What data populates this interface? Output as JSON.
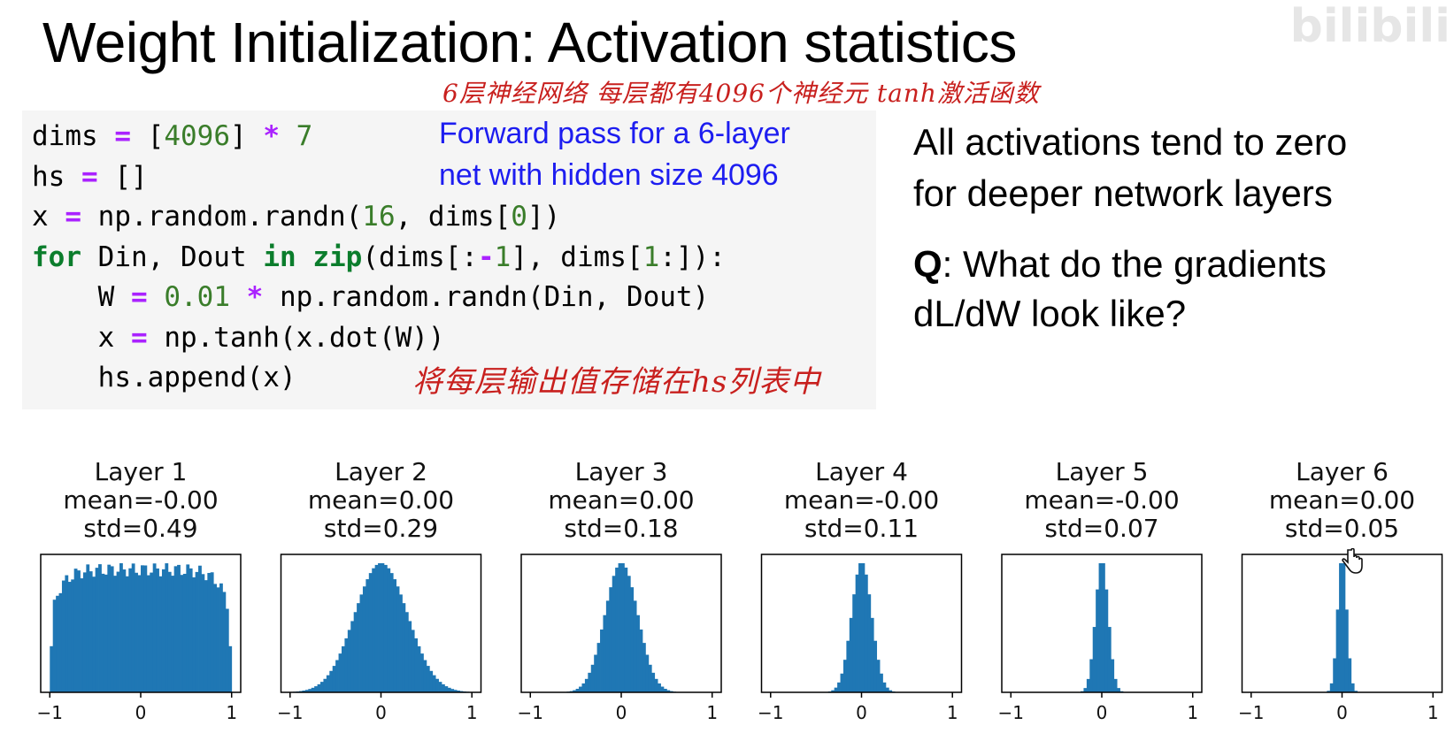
{
  "slide": {
    "title": "Weight Initialization: Activation statistics",
    "watermark": "bilibili",
    "annotation_top": "6层神经网络  每层都有4096个神经元  tanh激活函数",
    "annotation_code": "将每层输出值存储在hs列表中",
    "code_note_line1": "Forward pass for a 6-layer",
    "code_note_line2": "net with hidden size 4096",
    "right_line1": "All activations tend to zero",
    "right_line2": "for deeper network layers",
    "q_label": "Q",
    "q_line1": ": What do the gradients",
    "q_line2": "dL/dW look like?"
  },
  "code": {
    "line1": {
      "a": "dims ",
      "op1": "=",
      "b": " [",
      "n1": "4096",
      "c": "] ",
      "op2": "*",
      "d": " ",
      "n2": "7"
    },
    "line2": {
      "a": "hs ",
      "op1": "=",
      "b": " []"
    },
    "line3": {
      "a": "x ",
      "op1": "=",
      "b": " np.random.randn(",
      "n1": "16",
      "c": ", dims[",
      "n2": "0",
      "d": "])"
    },
    "line4": {
      "kw1": "for",
      "a": " Din, Dout ",
      "kw2": "in",
      "b": " ",
      "kw3": "zip",
      "c": "(dims[:",
      "op1": "-",
      "n1": "1",
      "d": "], dims[",
      "n2": "1",
      "e": ":]):"
    },
    "line5": {
      "indent": "    ",
      "a": "W ",
      "op1": "=",
      "b": " ",
      "n1": "0.01",
      "c": " ",
      "op2": "*",
      "d": " np.random.randn(Din, Dout)"
    },
    "line6": {
      "indent": "    ",
      "a": "x ",
      "op1": "=",
      "b": " np.tanh(x.dot(W))"
    },
    "line7": {
      "indent": "    ",
      "a": "hs.append(x)"
    }
  },
  "colors": {
    "bar": "#1f77b4",
    "annotation": "#c8201e",
    "note_blue": "#1d1df0",
    "code_bg": "#f5f5f5"
  },
  "chart_data": [
    {
      "type": "bar",
      "title": "Layer 1",
      "subtitle": [
        "mean=-0.00",
        "std=0.49"
      ],
      "xlim": [
        -1.1,
        1.1
      ],
      "xticks": [
        "-1",
        "0",
        "1"
      ],
      "xtick_values": [
        -1,
        0,
        1
      ],
      "std": 0.49,
      "shape": "flat-top"
    },
    {
      "type": "bar",
      "title": "Layer 2",
      "subtitle": [
        "mean=0.00",
        "std=0.29"
      ],
      "xlim": [
        -1.1,
        1.1
      ],
      "xticks": [
        "-1",
        "0",
        "1"
      ],
      "xtick_values": [
        -1,
        0,
        1
      ],
      "std": 0.29,
      "shape": "bell"
    },
    {
      "type": "bar",
      "title": "Layer 3",
      "subtitle": [
        "mean=0.00",
        "std=0.18"
      ],
      "xlim": [
        -1.1,
        1.1
      ],
      "xticks": [
        "-1",
        "0",
        "1"
      ],
      "xtick_values": [
        -1,
        0,
        1
      ],
      "std": 0.18,
      "shape": "bell"
    },
    {
      "type": "bar",
      "title": "Layer 4",
      "subtitle": [
        "mean=-0.00",
        "std=0.11"
      ],
      "xlim": [
        -1.1,
        1.1
      ],
      "xticks": [
        "-1",
        "0",
        "1"
      ],
      "xtick_values": [
        -1,
        0,
        1
      ],
      "std": 0.11,
      "shape": "bell"
    },
    {
      "type": "bar",
      "title": "Layer 5",
      "subtitle": [
        "mean=-0.00",
        "std=0.07"
      ],
      "xlim": [
        -1.1,
        1.1
      ],
      "xticks": [
        "-1",
        "0",
        "1"
      ],
      "xtick_values": [
        -1,
        0,
        1
      ],
      "std": 0.07,
      "shape": "bell"
    },
    {
      "type": "bar",
      "title": "Layer 6",
      "subtitle": [
        "mean=0.00",
        "std=0.05"
      ],
      "xlim": [
        -1.1,
        1.1
      ],
      "xticks": [
        "-1",
        "0",
        "1"
      ],
      "xtick_values": [
        -1,
        0,
        1
      ],
      "std": 0.05,
      "shape": "bell"
    }
  ]
}
